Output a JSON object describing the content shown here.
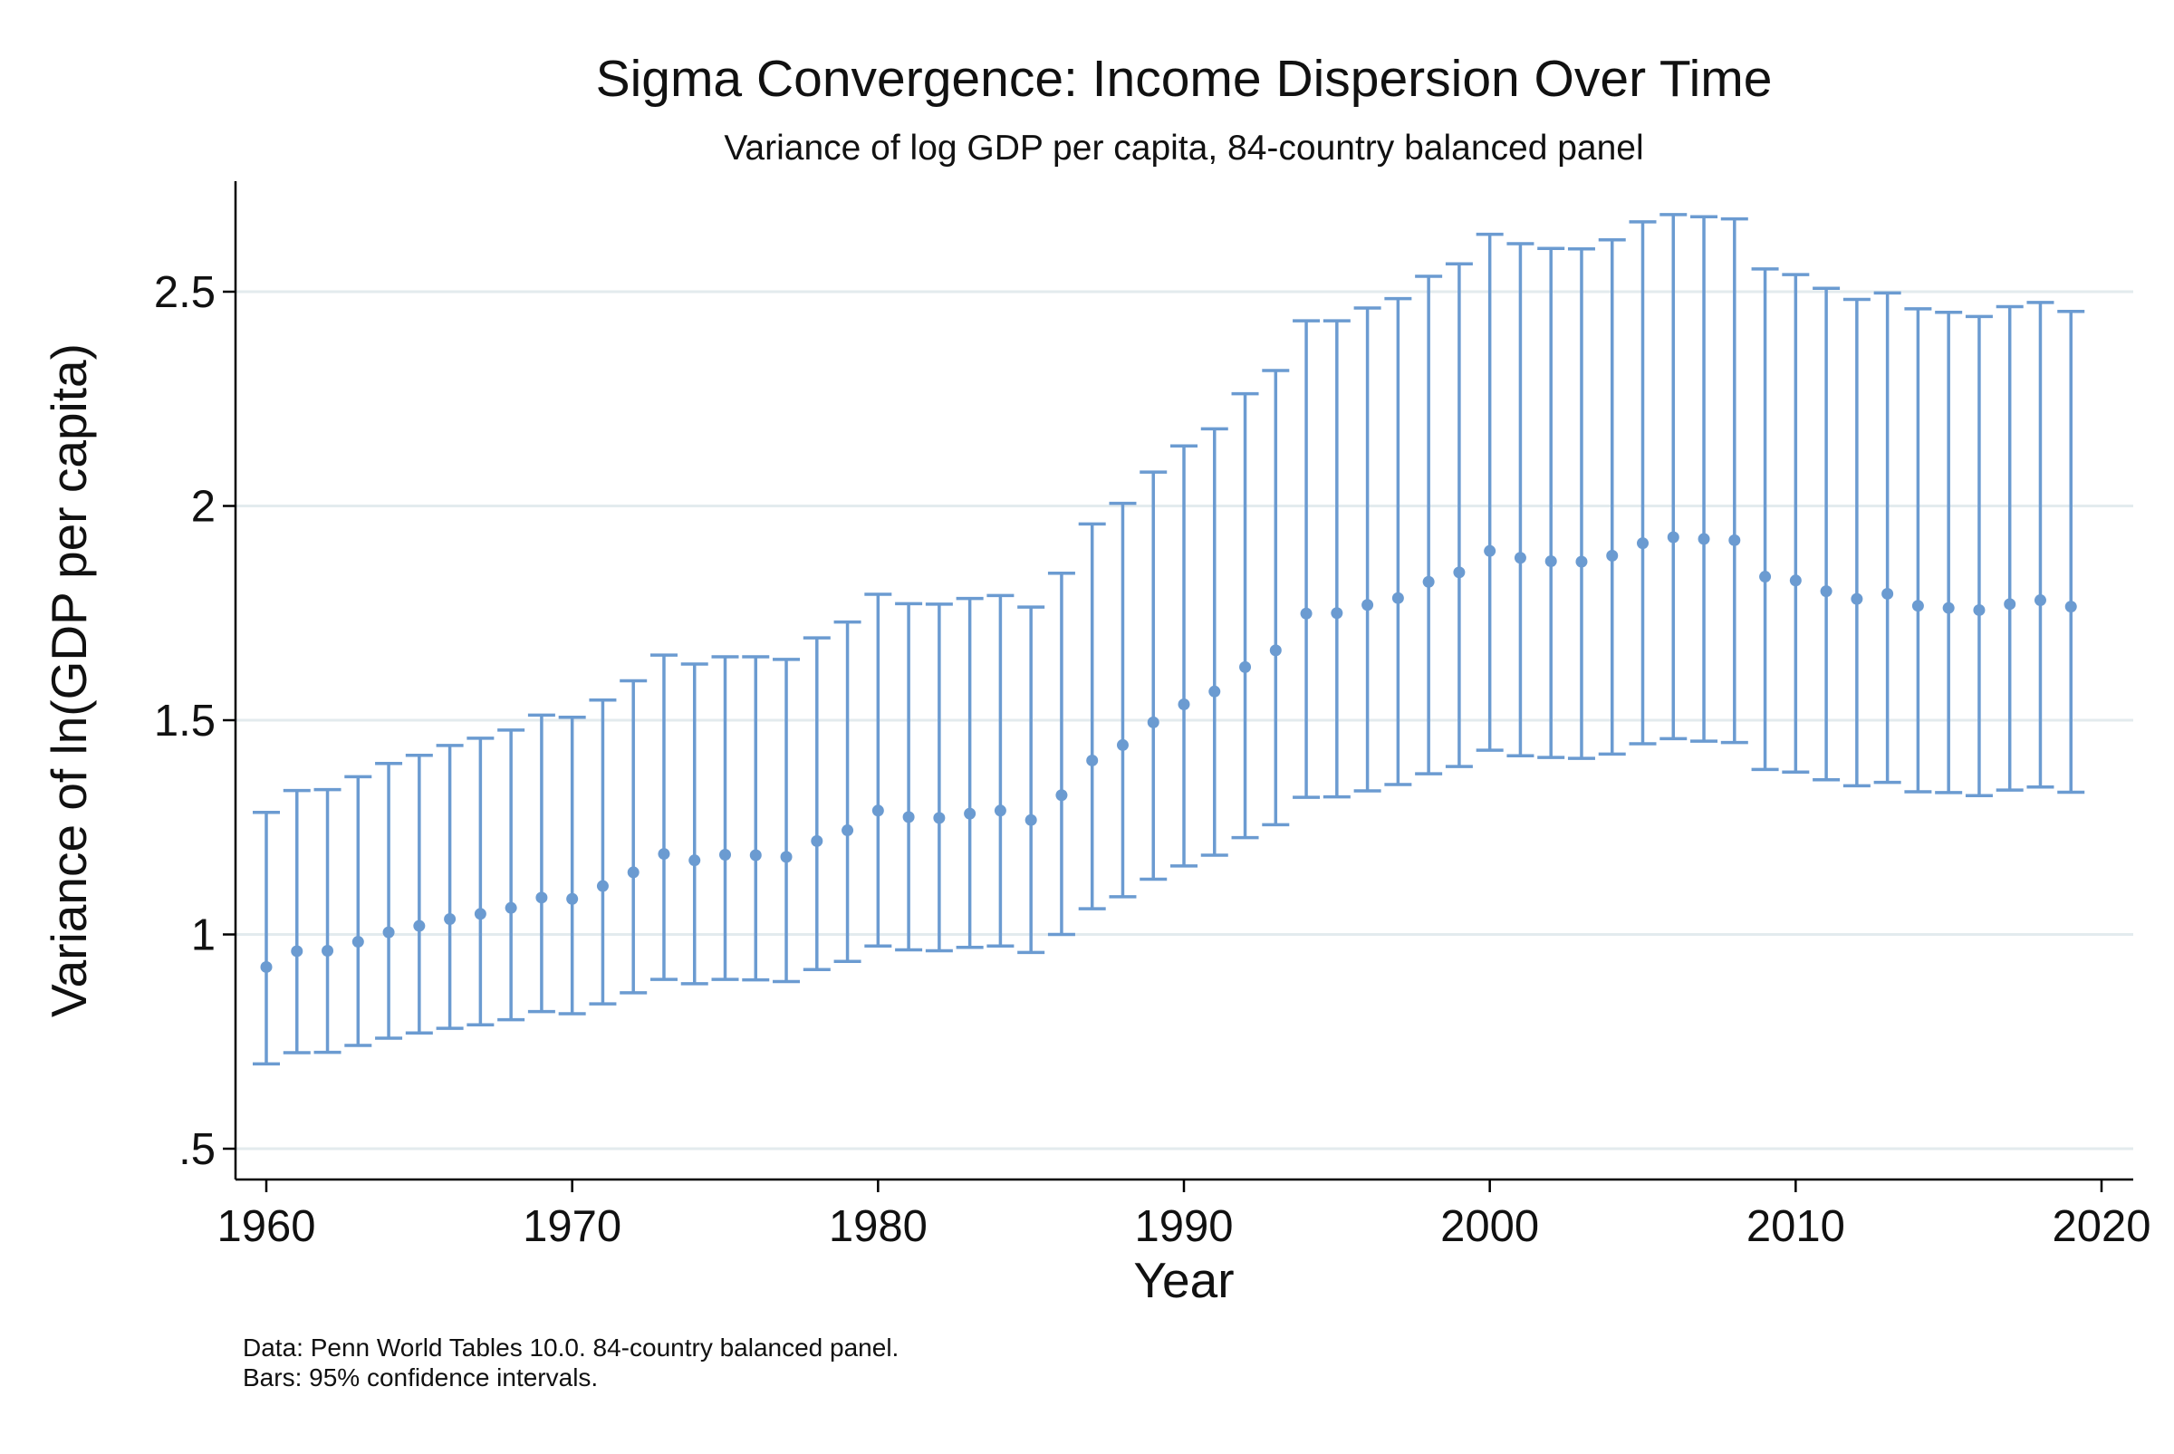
{
  "chart_data": {
    "type": "errorbar",
    "title": "Sigma Convergence: Income Dispersion Over Time",
    "subtitle": "Variance of log GDP per capita, 84-country balanced panel",
    "xlabel": "Year",
    "ylabel": "Variance of ln(GDP per capita)",
    "xlim": [
      1959,
      2021
    ],
    "ylim": [
      0.43,
      2.75
    ],
    "xticks": [
      1960,
      1970,
      1980,
      1990,
      2000,
      2010,
      2020
    ],
    "xtick_labels": [
      "1960",
      "1970",
      "1980",
      "1990",
      "2000",
      "2010",
      "2020"
    ],
    "yticks": [
      0.5,
      1,
      1.5,
      2,
      2.5
    ],
    "ytick_labels": [
      ".5",
      "1",
      "1.5",
      "2",
      "2.5"
    ],
    "grid": "horizontal",
    "legend": "none",
    "notes": [
      "Data: Penn World Tables 10.0. 84-country balanced panel.",
      "Bars: 95% confidence intervals."
    ],
    "color": "#6b9bd1",
    "series": [
      {
        "x": [
          1960,
          1961,
          1962,
          1963,
          1964,
          1965,
          1966,
          1967,
          1968,
          1969,
          1970,
          1971,
          1972,
          1973,
          1974,
          1975,
          1976,
          1977,
          1978,
          1979,
          1980,
          1981,
          1982,
          1983,
          1984,
          1985,
          1986,
          1987,
          1988,
          1989,
          1990,
          1991,
          1992,
          1993,
          1994,
          1995,
          1996,
          1997,
          1998,
          1999,
          2000,
          2001,
          2002,
          2003,
          2004,
          2005,
          2006,
          2007,
          2008,
          2009,
          2010,
          2011,
          2012,
          2013,
          2014,
          2015,
          2016,
          2017,
          2018,
          2019
        ],
        "y": [
          0.924,
          0.961,
          0.962,
          0.983,
          1.005,
          1.02,
          1.036,
          1.048,
          1.062,
          1.086,
          1.083,
          1.113,
          1.145,
          1.188,
          1.173,
          1.186,
          1.185,
          1.181,
          1.218,
          1.243,
          1.289,
          1.274,
          1.272,
          1.282,
          1.289,
          1.267,
          1.325,
          1.406,
          1.442,
          1.495,
          1.537,
          1.567,
          1.624,
          1.663,
          1.749,
          1.75,
          1.769,
          1.785,
          1.823,
          1.845,
          1.895,
          1.879,
          1.871,
          1.87,
          1.884,
          1.913,
          1.927,
          1.923,
          1.92,
          1.835,
          1.826,
          1.801,
          1.783,
          1.795,
          1.767,
          1.762,
          1.757,
          1.771,
          1.78,
          1.765
        ],
        "ci_low": [
          0.698,
          0.724,
          0.725,
          0.741,
          0.758,
          0.77,
          0.781,
          0.789,
          0.801,
          0.82,
          0.815,
          0.838,
          0.864,
          0.895,
          0.885,
          0.895,
          0.894,
          0.89,
          0.918,
          0.937,
          0.973,
          0.964,
          0.962,
          0.97,
          0.973,
          0.958,
          1.0,
          1.06,
          1.088,
          1.129,
          1.16,
          1.185,
          1.226,
          1.256,
          1.32,
          1.321,
          1.335,
          1.35,
          1.375,
          1.392,
          1.43,
          1.417,
          1.413,
          1.411,
          1.421,
          1.445,
          1.457,
          1.451,
          1.448,
          1.385,
          1.379,
          1.361,
          1.347,
          1.355,
          1.333,
          1.331,
          1.324,
          1.337,
          1.344,
          1.332
        ],
        "ci_high": [
          1.285,
          1.336,
          1.338,
          1.368,
          1.399,
          1.418,
          1.441,
          1.458,
          1.477,
          1.512,
          1.507,
          1.547,
          1.592,
          1.652,
          1.631,
          1.648,
          1.648,
          1.642,
          1.692,
          1.729,
          1.794,
          1.772,
          1.771,
          1.784,
          1.791,
          1.764,
          1.843,
          1.958,
          2.006,
          2.079,
          2.14,
          2.18,
          2.262,
          2.316,
          2.432,
          2.432,
          2.462,
          2.484,
          2.536,
          2.565,
          2.634,
          2.612,
          2.601,
          2.6,
          2.621,
          2.663,
          2.68,
          2.675,
          2.67,
          2.553,
          2.54,
          2.508,
          2.482,
          2.497,
          2.46,
          2.452,
          2.442,
          2.465,
          2.475,
          2.454
        ]
      }
    ]
  }
}
